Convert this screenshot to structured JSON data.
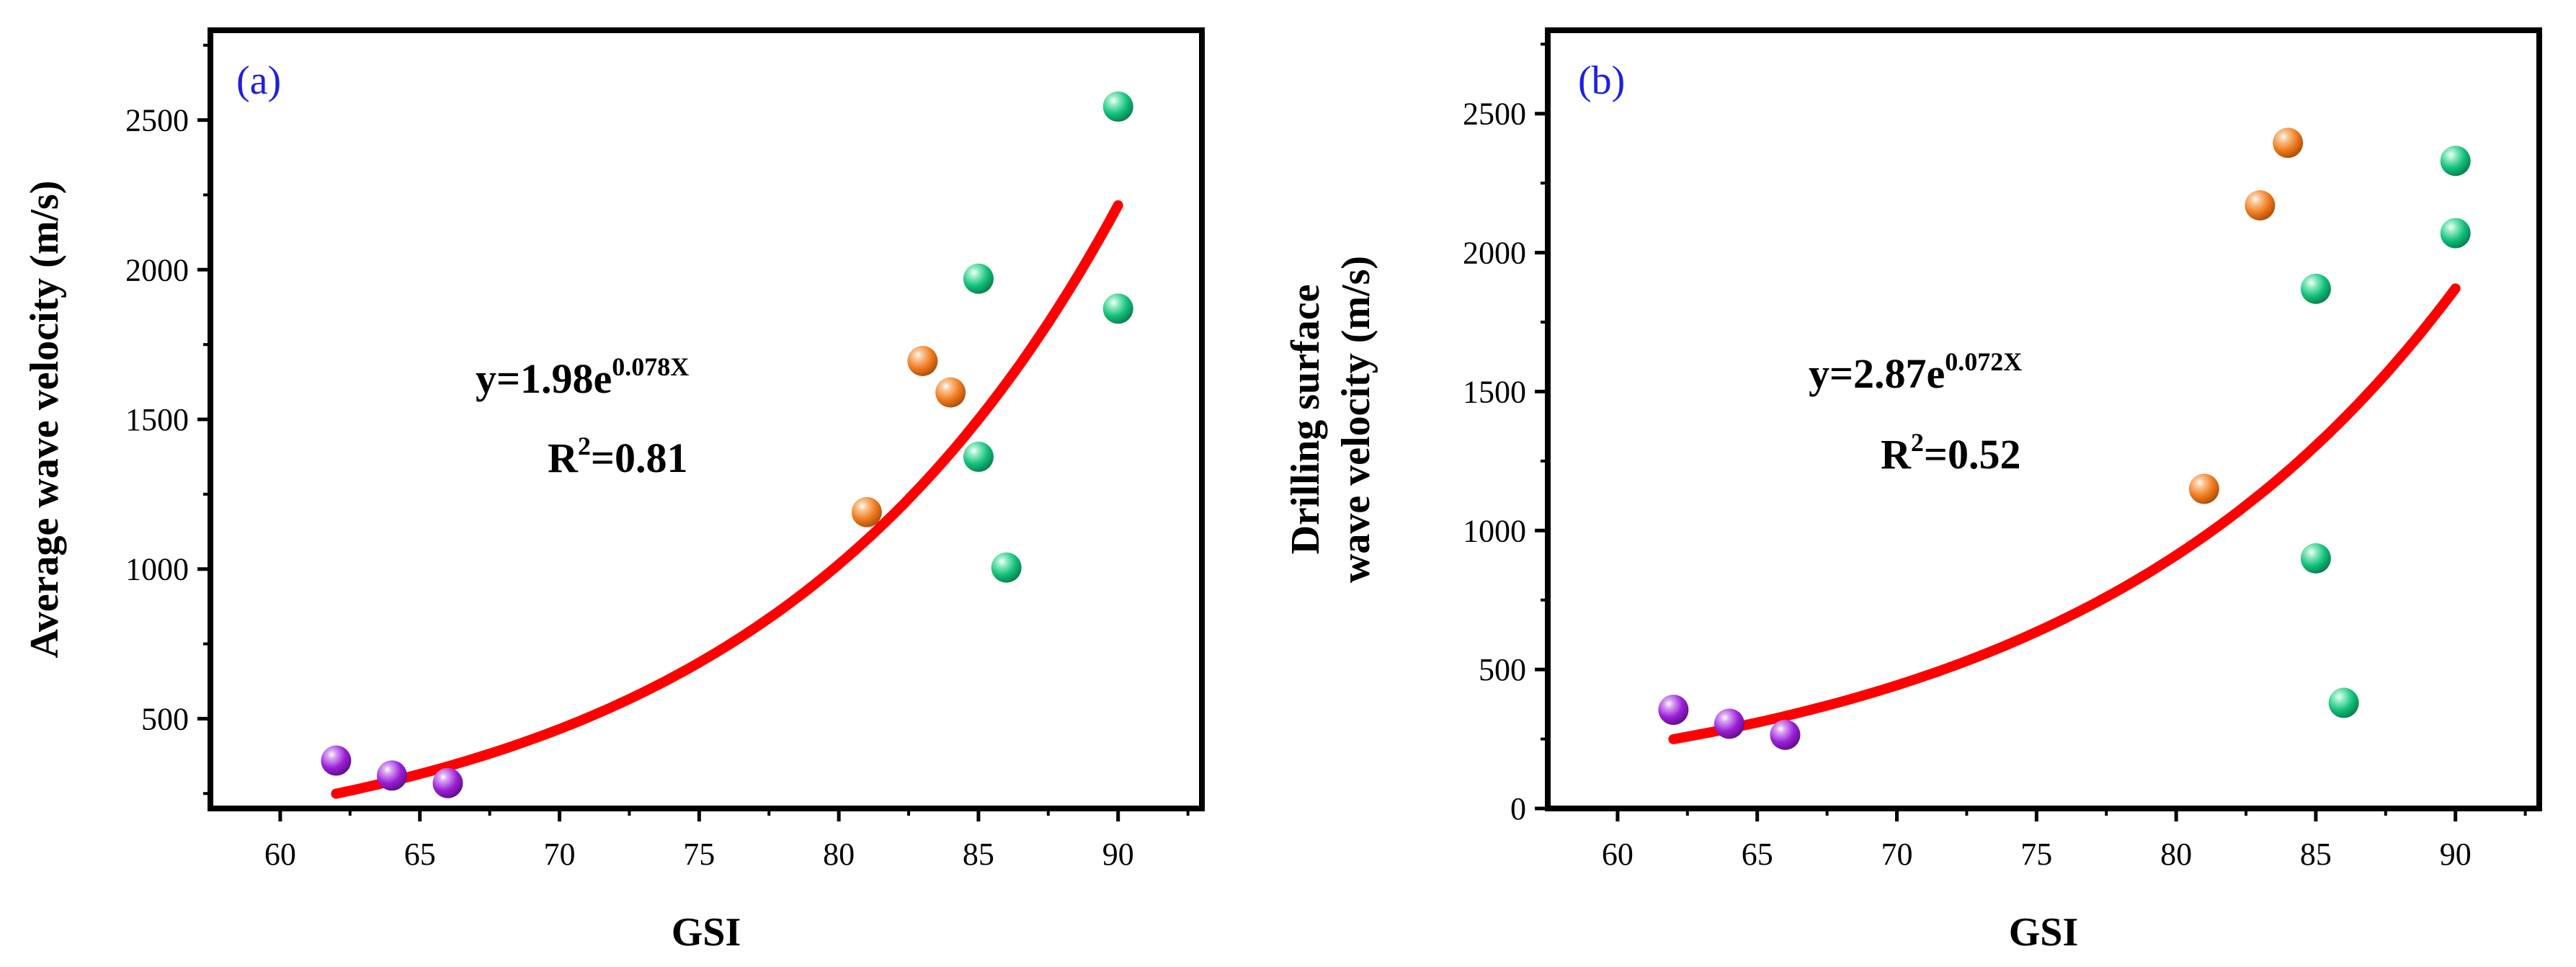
{
  "colors": {
    "fit": "#ff0000",
    "panel_label": "#1f1fe0",
    "groups": {
      "purple": "#9b1fd6",
      "orange": "#f07a1e",
      "green": "#12c07a"
    }
  },
  "chart_data": [
    {
      "type": "scatter",
      "panel_label": "(a)",
      "xlabel": "GSI",
      "ylabel_lines": [
        "Average wave velocity (m/s)"
      ],
      "xlim": [
        57.5,
        93
      ],
      "ylim": [
        200,
        2800
      ],
      "xticks": [
        60,
        65,
        70,
        75,
        80,
        85,
        90
      ],
      "yticks": [
        500,
        1000,
        1500,
        2000,
        2500
      ],
      "points": [
        {
          "x": 62,
          "y": 360,
          "group": "purple"
        },
        {
          "x": 64,
          "y": 310,
          "group": "purple"
        },
        {
          "x": 66,
          "y": 285,
          "group": "purple"
        },
        {
          "x": 81,
          "y": 1190,
          "group": "orange"
        },
        {
          "x": 83,
          "y": 1695,
          "group": "orange"
        },
        {
          "x": 84,
          "y": 1590,
          "group": "orange"
        },
        {
          "x": 85,
          "y": 1970,
          "group": "green"
        },
        {
          "x": 85,
          "y": 1375,
          "group": "green"
        },
        {
          "x": 86,
          "y": 1005,
          "group": "green"
        },
        {
          "x": 90,
          "y": 2545,
          "group": "green"
        },
        {
          "x": 90,
          "y": 1870,
          "group": "green"
        }
      ],
      "fit": {
        "a": 1.98,
        "b": 0.078,
        "x_range": [
          62,
          90
        ]
      },
      "equation": {
        "prefix": "y=1.98e",
        "exponent": "0.078X",
        "r2_prefix": "R",
        "r2_sup": "2",
        "r2_value": "=0.81"
      }
    },
    {
      "type": "scatter",
      "panel_label": "(b)",
      "xlabel": "GSI",
      "ylabel_lines": [
        "Drilling surface",
        "wave velocity (m/s)"
      ],
      "xlim": [
        57.5,
        93
      ],
      "ylim": [
        0,
        2800
      ],
      "xticks": [
        60,
        65,
        70,
        75,
        80,
        85,
        90
      ],
      "yticks": [
        0,
        500,
        1000,
        1500,
        2000,
        2500
      ],
      "points": [
        {
          "x": 62,
          "y": 355,
          "group": "purple"
        },
        {
          "x": 64,
          "y": 305,
          "group": "purple"
        },
        {
          "x": 66,
          "y": 265,
          "group": "purple"
        },
        {
          "x": 81,
          "y": 1150,
          "group": "orange"
        },
        {
          "x": 83,
          "y": 2170,
          "group": "orange"
        },
        {
          "x": 84,
          "y": 2395,
          "group": "orange"
        },
        {
          "x": 85,
          "y": 1870,
          "group": "green"
        },
        {
          "x": 85,
          "y": 900,
          "group": "green"
        },
        {
          "x": 86,
          "y": 380,
          "group": "green"
        },
        {
          "x": 90,
          "y": 2330,
          "group": "green"
        },
        {
          "x": 90,
          "y": 2070,
          "group": "green"
        }
      ],
      "fit": {
        "a": 2.87,
        "b": 0.072,
        "x_range": [
          62,
          90
        ]
      },
      "equation": {
        "prefix": "y=2.87e",
        "exponent": "0.072X",
        "r2_prefix": "R",
        "r2_sup": "2",
        "r2_value": "=0.52"
      }
    }
  ]
}
